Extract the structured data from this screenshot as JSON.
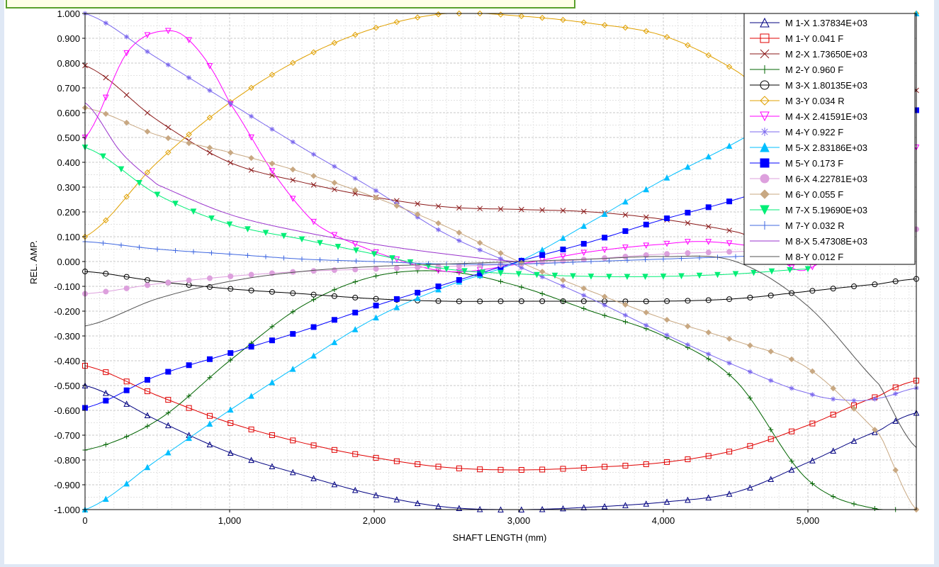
{
  "chart_data": {
    "type": "line",
    "xlabel": "SHAFT LENGTH (mm)",
    "ylabel": "REL. AMP.",
    "xlim": [
      0,
      5750
    ],
    "ylim": [
      -1.0,
      1.0
    ],
    "grid": true,
    "legend_position": "top-right",
    "x_ticks": [
      {
        "value": 0,
        "label": "0"
      },
      {
        "value": 1000,
        "label": "1,000"
      },
      {
        "value": 2000,
        "label": "2,000"
      },
      {
        "value": 3000,
        "label": "3,000"
      },
      {
        "value": 4000,
        "label": "4,000"
      },
      {
        "value": 5000,
        "label": "5,000"
      }
    ],
    "y_ticks": [
      {
        "value": 1.0,
        "label": "1.000"
      },
      {
        "value": 0.9,
        "label": "0.900"
      },
      {
        "value": 0.8,
        "label": "0.800"
      },
      {
        "value": 0.7,
        "label": "0.700"
      },
      {
        "value": 0.6,
        "label": "0.600"
      },
      {
        "value": 0.5,
        "label": "0.500"
      },
      {
        "value": 0.4,
        "label": "0.400"
      },
      {
        "value": 0.3,
        "label": "0.300"
      },
      {
        "value": 0.2,
        "label": "0.200"
      },
      {
        "value": 0.1,
        "label": "0.100"
      },
      {
        "value": 0.0,
        "label": "0.000"
      },
      {
        "value": -0.1,
        "label": "-0.100"
      },
      {
        "value": -0.2,
        "label": "-0.200"
      },
      {
        "value": -0.3,
        "label": "-0.300"
      },
      {
        "value": -0.4,
        "label": "-0.400"
      },
      {
        "value": -0.5,
        "label": "-0.500"
      },
      {
        "value": -0.6,
        "label": "-0.600"
      },
      {
        "value": -0.7,
        "label": "-0.700"
      },
      {
        "value": -0.8,
        "label": "-0.800"
      },
      {
        "value": -0.9,
        "label": "-0.900"
      },
      {
        "value": -1.0,
        "label": "-1.000"
      }
    ],
    "series": [
      {
        "name": "M   1-X  1.37834E+03",
        "color": "#000080",
        "marker": "triangle",
        "x": [
          0,
          500,
          1000,
          1500,
          2000,
          2500,
          3000,
          3500,
          4000,
          4500,
          5000,
          5500,
          5750
        ],
        "y": [
          -0.5,
          -0.64,
          -0.77,
          -0.86,
          -0.94,
          -0.99,
          -1.0,
          -0.99,
          -0.97,
          -0.93,
          -0.81,
          -0.68,
          -0.61
        ]
      },
      {
        "name": "M   1-Y  0.041 F",
        "color": "#e00000",
        "marker": "square",
        "x": [
          0,
          500,
          1000,
          1500,
          2000,
          2500,
          3000,
          3500,
          4000,
          4500,
          5000,
          5500,
          5750
        ],
        "y": [
          -0.42,
          -0.54,
          -0.65,
          -0.73,
          -0.79,
          -0.83,
          -0.84,
          -0.83,
          -0.81,
          -0.76,
          -0.66,
          -0.54,
          -0.48
        ]
      },
      {
        "name": "M   2-X  1.73650E+03",
        "color": "#8b1a1a",
        "marker": "x",
        "x": [
          0,
          500,
          1000,
          1500,
          2000,
          2500,
          3000,
          3500,
          4000,
          4500,
          5000,
          5500,
          5750
        ],
        "y": [
          0.79,
          0.57,
          0.4,
          0.32,
          0.26,
          0.22,
          0.21,
          0.2,
          0.17,
          0.12,
          0.05,
          0.5,
          0.69
        ]
      },
      {
        "name": "M   2-Y  0.960 F",
        "color": "#006400",
        "marker": "plus",
        "x": [
          0,
          500,
          1000,
          1500,
          2000,
          2500,
          3000,
          3500,
          4000,
          4500,
          5000,
          5500,
          5750
        ],
        "y": [
          -0.76,
          -0.64,
          -0.4,
          -0.18,
          -0.06,
          -0.04,
          -0.1,
          -0.2,
          -0.3,
          -0.48,
          -0.88,
          -1.0,
          -1.0
        ]
      },
      {
        "name": "M   3-X  1.80135E+03",
        "color": "#000000",
        "marker": "circle",
        "x": [
          0,
          500,
          1000,
          1500,
          2000,
          2500,
          3000,
          3500,
          4000,
          4500,
          5000,
          5500,
          5750
        ],
        "y": [
          -0.04,
          -0.08,
          -0.11,
          -0.13,
          -0.15,
          -0.16,
          -0.16,
          -0.16,
          -0.16,
          -0.15,
          -0.12,
          -0.09,
          -0.07
        ]
      },
      {
        "name": "M   3-Y  0.034 R",
        "color": "#e0a000",
        "marker": "diamond-open",
        "x": [
          0,
          500,
          1000,
          1500,
          2000,
          2500,
          3000,
          3500,
          4000,
          4500,
          5000,
          5500,
          5750
        ],
        "y": [
          0.1,
          0.4,
          0.64,
          0.82,
          0.94,
          1.0,
          0.99,
          0.96,
          0.91,
          0.77,
          0.56,
          0.8,
          1.0
        ]
      },
      {
        "name": "M   4-X  2.41591E+03",
        "color": "#ff00ff",
        "marker": "triangle-down",
        "x": [
          0,
          300,
          600,
          800,
          1000,
          1300,
          1600,
          2000,
          2500,
          3000,
          3500,
          4000,
          4300,
          4700,
          5000,
          5500,
          5750
        ],
        "y": [
          0.5,
          0.85,
          0.93,
          0.84,
          0.64,
          0.36,
          0.15,
          0.04,
          -0.04,
          -0.01,
          0.04,
          0.07,
          0.08,
          0.05,
          -0.03,
          0.25,
          0.46
        ]
      },
      {
        "name": "M   4-Y  0.922 F",
        "color": "#7b68ee",
        "marker": "star",
        "x": [
          0,
          500,
          1000,
          1500,
          2000,
          2500,
          3000,
          3500,
          4000,
          4500,
          5000,
          5300,
          5500,
          5750
        ],
        "y": [
          1.0,
          0.82,
          0.64,
          0.46,
          0.29,
          0.11,
          -0.02,
          -0.15,
          -0.29,
          -0.42,
          -0.53,
          -0.56,
          -0.55,
          -0.51
        ]
      },
      {
        "name": "M   5-X  2.83186E+03",
        "color": "#00bfff",
        "marker": "triangle-filled",
        "x": [
          0,
          500,
          1000,
          1500,
          2000,
          2500,
          3000,
          3500,
          4000,
          4500,
          5000,
          5500,
          5750
        ],
        "y": [
          -1.0,
          -0.8,
          -0.6,
          -0.41,
          -0.23,
          -0.1,
          0.0,
          0.16,
          0.33,
          0.48,
          0.65,
          0.85,
          1.0
        ]
      },
      {
        "name": "M   5-Y  0.173 F",
        "color": "#0000ff",
        "marker": "square-filled",
        "x": [
          0,
          500,
          1000,
          1500,
          2000,
          2500,
          3000,
          3500,
          4000,
          4500,
          5000,
          5500,
          5750
        ],
        "y": [
          -0.59,
          -0.46,
          -0.37,
          -0.28,
          -0.18,
          -0.09,
          0.0,
          0.08,
          0.17,
          0.25,
          0.35,
          0.5,
          0.61
        ]
      },
      {
        "name": "M   6-X  4.22781E+03",
        "color": "#dda0dd",
        "marker": "circle-filled",
        "x": [
          0,
          500,
          1000,
          1500,
          2000,
          2500,
          3000,
          3500,
          4000,
          4500,
          5000,
          5500,
          5750
        ],
        "y": [
          -0.13,
          -0.09,
          -0.06,
          -0.04,
          -0.03,
          -0.02,
          -0.01,
          0.01,
          0.03,
          0.04,
          0.05,
          0.09,
          0.13
        ]
      },
      {
        "name": "M   6-Y  0.055 F",
        "color": "#c8a882",
        "marker": "diamond-filled",
        "x": [
          0,
          500,
          1000,
          1500,
          2000,
          2500,
          3000,
          3500,
          4000,
          4500,
          5000,
          5500,
          5750
        ],
        "y": [
          0.62,
          0.51,
          0.44,
          0.36,
          0.26,
          0.14,
          0.0,
          -0.12,
          -0.23,
          -0.32,
          -0.43,
          -0.7,
          -1.0
        ]
      },
      {
        "name": "M   7-X  5.19690E+03",
        "color": "#00ee76",
        "marker": "triangle-down-filled",
        "x": [
          0,
          500,
          1000,
          1500,
          2000,
          2500,
          3000,
          3500,
          4000,
          4500,
          5000
        ],
        "y": [
          0.46,
          0.27,
          0.15,
          0.09,
          0.03,
          -0.03,
          -0.05,
          -0.06,
          -0.06,
          -0.05,
          -0.03
        ]
      },
      {
        "name": "M   7-Y  0.032 R",
        "color": "#4169e1",
        "marker": "plus",
        "x": [
          0,
          500,
          1000,
          1500,
          2000,
          2500,
          3000,
          3500,
          4000,
          4500,
          5000
        ],
        "y": [
          0.08,
          0.05,
          0.03,
          0.01,
          0.0,
          -0.01,
          -0.01,
          0.0,
          0.01,
          0.02,
          0.03
        ]
      },
      {
        "name": "M   8-X  5.47308E+03",
        "color": "#9932cc",
        "marker": "none",
        "x": [
          0,
          250,
          500,
          1000,
          1500,
          2000,
          2500,
          3000
        ],
        "y": [
          0.64,
          0.44,
          0.31,
          0.19,
          0.12,
          0.07,
          0.03,
          0.0
        ]
      },
      {
        "name": "M   8-Y  0.012 F",
        "color": "#505050",
        "marker": "none",
        "x": [
          0,
          500,
          1000,
          1500,
          2000,
          2500,
          3000,
          3500,
          4000,
          4500,
          5000,
          5500,
          5750
        ],
        "y": [
          -0.26,
          -0.15,
          -0.08,
          -0.04,
          -0.02,
          -0.01,
          0.0,
          0.01,
          0.02,
          0.0,
          -0.18,
          -0.5,
          -0.75
        ]
      }
    ]
  }
}
